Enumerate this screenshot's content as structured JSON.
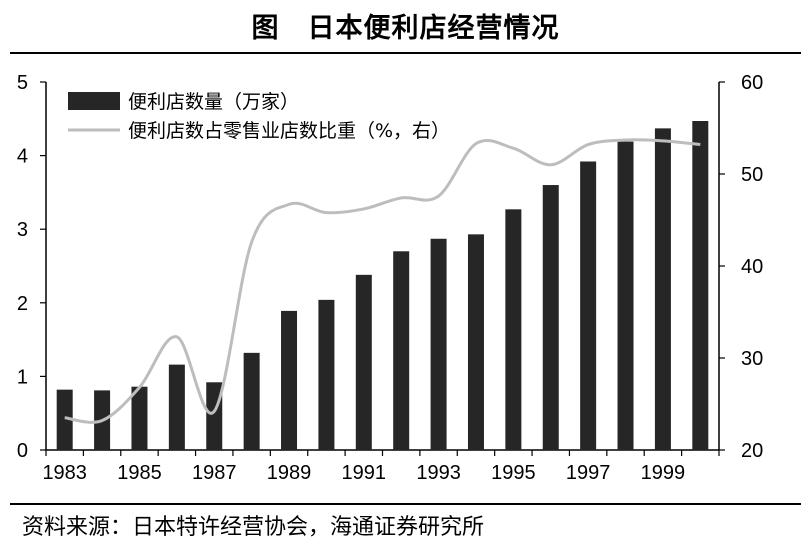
{
  "title": "图　日本便利店经营情况",
  "source": "资料来源：日本特许经营协会，海通证券研究所",
  "colors": {
    "bar": "#262626",
    "line": "#bdbdbd",
    "axis": "#000000"
  },
  "chart_data": {
    "type": "bar+line",
    "categories": [
      "1983",
      "1984",
      "1985",
      "1986",
      "1987",
      "1988",
      "1989",
      "1990",
      "1991",
      "1992",
      "1993",
      "1994",
      "1995",
      "1996",
      "1997",
      "1998",
      "1999",
      "2000"
    ],
    "x_tick_labels": [
      "1983",
      "1985",
      "1987",
      "1989",
      "1991",
      "1993",
      "1995",
      "1997",
      "1999"
    ],
    "series": [
      {
        "name": "便利店数量（万家）",
        "type": "bar",
        "axis": "left",
        "values": [
          0.82,
          0.81,
          0.86,
          1.16,
          0.92,
          1.32,
          1.89,
          2.04,
          2.38,
          2.7,
          2.87,
          2.93,
          3.27,
          3.6,
          3.92,
          4.19,
          4.37,
          4.47
        ]
      },
      {
        "name": "便利店数占零售业店数比重（%，右）",
        "type": "line",
        "axis": "right",
        "values": [
          23.5,
          23.2,
          26.8,
          32.3,
          24.2,
          42.6,
          46.7,
          45.8,
          46.2,
          47.4,
          47.6,
          53.3,
          52.8,
          51.0,
          53.2,
          53.7,
          53.6,
          53.2
        ]
      }
    ],
    "y_left": {
      "min": 0,
      "max": 5,
      "ticks": [
        "0",
        "1",
        "2",
        "3",
        "4",
        "5"
      ]
    },
    "y_right": {
      "min": 20,
      "max": 60,
      "ticks": [
        "20",
        "30",
        "40",
        "50",
        "60"
      ]
    },
    "legend_position": "top-left",
    "grid": false
  }
}
